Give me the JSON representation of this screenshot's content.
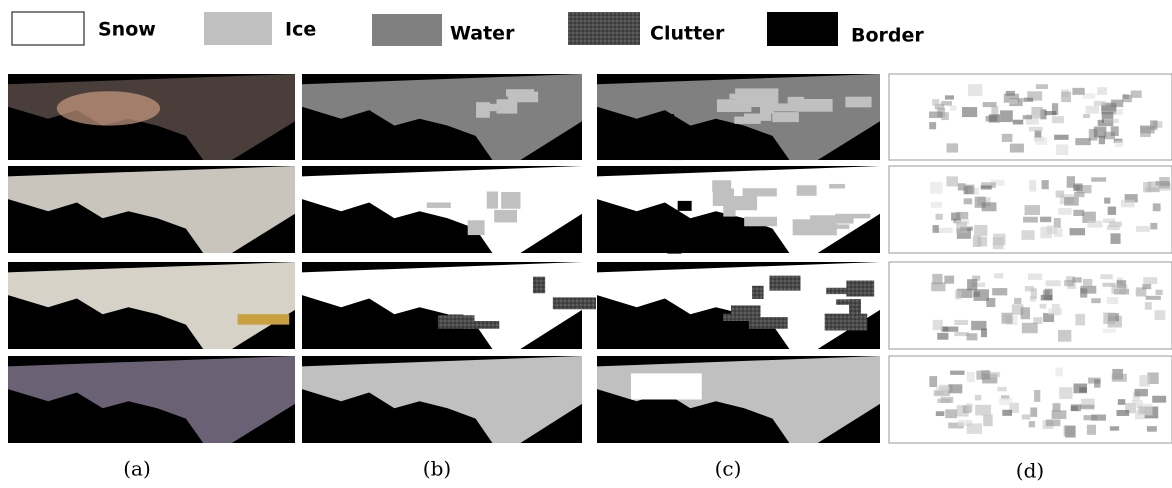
{
  "legend": [
    {
      "label": "Snow"
    },
    {
      "label": "Ice"
    },
    {
      "label": "Water"
    },
    {
      "label": "Clutter"
    },
    {
      "label": "Border"
    }
  ],
  "captions": [
    "(a)",
    "(b)",
    "(c)",
    "(d)"
  ]
}
